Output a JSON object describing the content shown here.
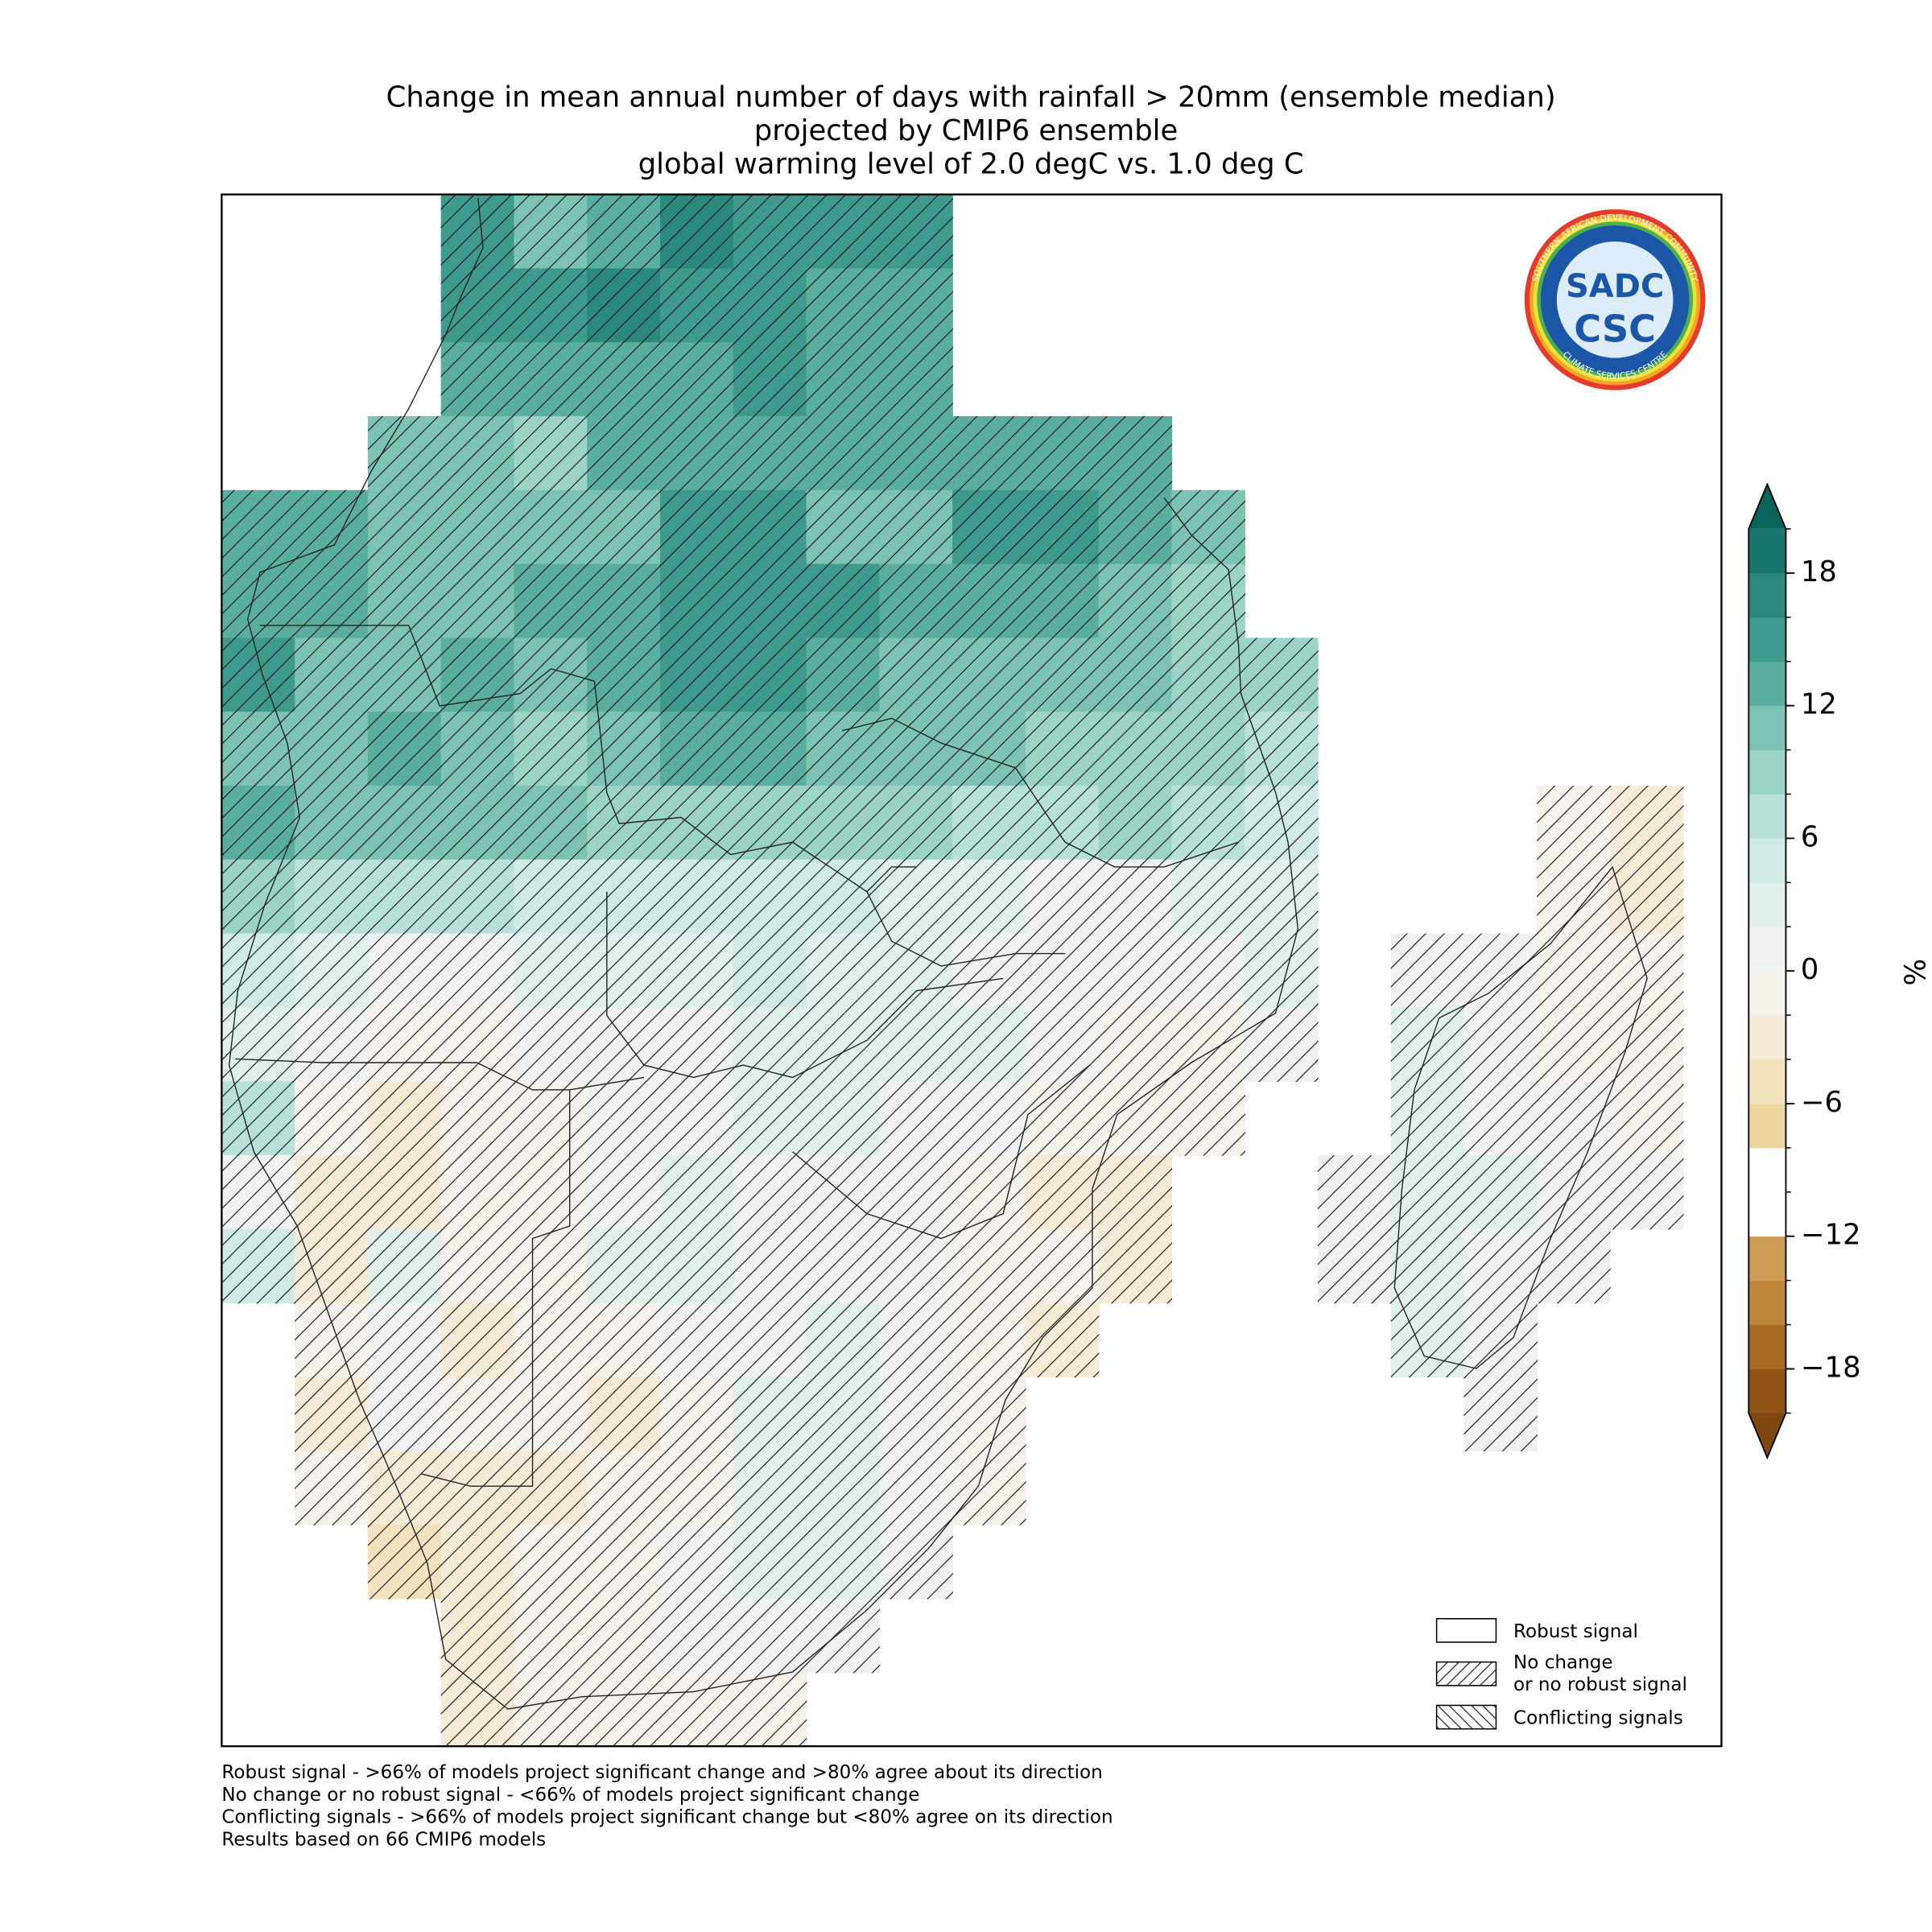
{
  "title": [
    "Change in mean annual number of days with rainfall > 20mm (ensemble median)",
    "projected by CMIP6 ensemble",
    "global warming level of 2.0 degC vs. 1.0 deg C"
  ],
  "map": {
    "grid": [
      [
        null,
        null,
        null,
        14,
        10,
        12,
        16,
        14,
        14,
        15,
        null,
        null,
        null,
        null,
        null,
        null,
        null,
        null,
        null,
        null
      ],
      [
        null,
        null,
        null,
        14,
        14,
        16,
        15,
        14,
        12,
        13,
        null,
        null,
        null,
        null,
        null,
        null,
        null,
        null,
        null,
        null
      ],
      [
        null,
        null,
        null,
        12,
        13,
        12,
        13,
        15,
        13,
        12,
        null,
        null,
        null,
        null,
        null,
        null,
        null,
        null,
        null,
        null
      ],
      [
        null,
        null,
        10,
        11,
        9,
        13,
        12,
        12,
        12,
        12,
        12,
        12,
        13,
        null,
        null,
        null,
        null,
        null,
        null,
        null
      ],
      [
        13,
        12,
        11,
        10,
        10,
        11,
        14,
        14,
        11,
        11,
        14,
        15,
        13,
        10,
        null,
        null,
        null,
        null,
        null,
        null
      ],
      [
        13,
        12,
        11,
        10,
        12,
        13,
        15,
        15,
        14,
        13,
        12,
        12,
        11,
        9,
        null,
        null,
        null,
        null,
        null,
        null
      ],
      [
        14,
        11,
        11,
        12,
        11,
        13,
        14,
        14,
        13,
        11,
        11,
        10,
        10,
        9,
        8,
        null,
        null,
        null,
        null,
        null
      ],
      [
        11,
        10,
        12,
        11,
        9,
        10,
        12,
        13,
        11,
        11,
        10,
        9,
        9,
        8,
        6,
        null,
        null,
        null,
        null,
        null
      ],
      [
        12,
        10,
        10,
        11,
        10,
        9,
        8,
        9,
        9,
        8,
        7,
        7,
        8,
        6,
        4,
        null,
        null,
        null,
        -1,
        -3
      ],
      [
        9,
        7,
        6,
        7,
        5,
        5,
        5,
        4,
        4,
        3,
        2,
        0,
        1,
        2,
        3,
        null,
        null,
        null,
        -2,
        -3
      ],
      [
        4,
        2,
        1,
        1,
        2,
        2,
        3,
        4,
        3,
        3,
        1,
        1,
        0,
        1,
        2,
        null,
        1,
        0,
        -1,
        -2
      ],
      [
        2,
        0,
        -1,
        -2,
        0,
        1,
        1,
        2,
        2,
        3,
        2,
        0,
        -1,
        -1,
        1,
        null,
        2,
        1,
        -1,
        -1
      ],
      [
        6,
        -2,
        -3,
        -2,
        -1,
        1,
        1,
        2,
        3,
        1,
        0,
        -2,
        -2,
        -1,
        null,
        null,
        3,
        1,
        0,
        -1
      ],
      [
        1,
        -3,
        -3,
        -2,
        -1,
        1,
        2,
        1,
        1,
        0,
        -1,
        -3,
        -3,
        null,
        null,
        0,
        2,
        2,
        1,
        0
      ],
      [
        4,
        -3,
        2,
        -1,
        -1,
        2,
        2,
        1,
        1,
        0,
        -1,
        -2,
        -3,
        null,
        null,
        1,
        2,
        1,
        1,
        null
      ],
      [
        null,
        -2,
        1,
        -4,
        -2,
        -1,
        0,
        1,
        2,
        1,
        -2,
        -4,
        null,
        null,
        null,
        null,
        2,
        1,
        null,
        null
      ],
      [
        null,
        -3,
        0,
        -1,
        -2,
        -3,
        -1,
        2,
        3,
        1,
        -1,
        null,
        null,
        null,
        null,
        null,
        null,
        1,
        null,
        null
      ],
      [
        null,
        -2,
        -3,
        -3,
        -3,
        -2,
        -1,
        2,
        3,
        1,
        -1,
        null,
        null,
        null,
        null,
        null,
        null,
        null,
        null,
        null
      ],
      [
        null,
        null,
        -6,
        -3,
        -2,
        -1,
        0,
        2,
        2,
        1,
        null,
        null,
        null,
        null,
        null,
        null,
        null,
        null,
        null,
        null
      ],
      [
        null,
        null,
        null,
        -4,
        -2,
        -1,
        0,
        1,
        1,
        null,
        null,
        null,
        null,
        null,
        null,
        null,
        null,
        null,
        null,
        null
      ],
      [
        null,
        null,
        null,
        -3,
        -2,
        -2,
        -2,
        -2,
        null,
        null,
        null,
        null,
        null,
        null,
        null,
        null,
        null,
        null,
        null,
        null
      ]
    ]
  },
  "colorbar": {
    "label": "%",
    "levels": [
      -20,
      -18,
      -16,
      -14,
      -12,
      -10,
      -8,
      -6,
      -4,
      -2,
      0,
      2,
      4,
      6,
      8,
      10,
      12,
      14,
      16,
      18,
      20
    ],
    "colors": [
      "#8f5315",
      "#a86b24",
      "#bd8538",
      "#cd9d55",
      "#ffffff",
      "#ffffff",
      "#ecd59f",
      "#f2e2bd",
      "#f6ebd6",
      "#f5f2ec",
      "#eff2f1",
      "#e0f0ec",
      "#d0ebe5",
      "#b8e2d9",
      "#9bd4c7",
      "#7cc3b3",
      "#5aae9f",
      "#3e9a8d",
      "#2a887d",
      "#16766b"
    ],
    "under_color": "#7e4710",
    "over_color": "#0a6358",
    "ticks": [
      {
        "value": -18,
        "label": "−18"
      },
      {
        "value": -12,
        "label": "−12"
      },
      {
        "value": -6,
        "label": "−6"
      },
      0,
      6,
      12,
      18
    ]
  },
  "legend": [
    {
      "lines": [
        "Robust signal"
      ]
    },
    {
      "lines": [
        "No change",
        "or no robust signal"
      ]
    },
    {
      "lines": [
        "Conflicting signals"
      ]
    }
  ],
  "footnotes": [
    "Robust signal - >66% of models project significant change and >80% agree about its direction",
    "No change or no robust signal - <66% of models project significant change",
    "Conflicting signals - >66% of models project significant change but <80% agree on its direction",
    "Results based on 66 CMIP6 models"
  ],
  "logo": {
    "top": "SADC",
    "bottom": "CSC",
    "ring_top": "SOUTHERN AFRICAN DEVELOPMENT COMMUNITY",
    "ring_bottom": "CLIMATE SERVICES CENTRE"
  }
}
